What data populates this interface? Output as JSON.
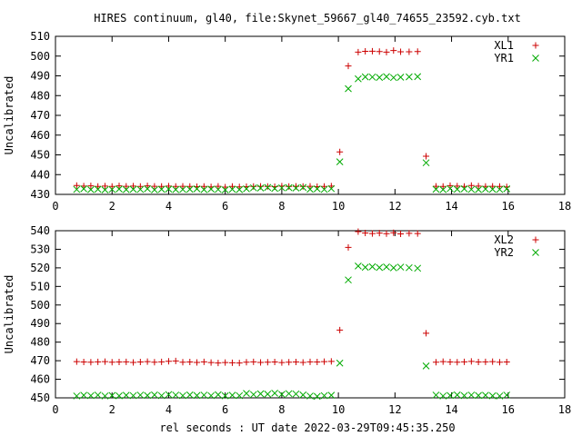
{
  "title": "HIRES continuum, gl40, file:Skynet_59667_gl40_74655_23592.cyb.txt",
  "xlabel": "rel seconds : UT date 2022-03-29T09:45:35.250",
  "chart_data": [
    {
      "type": "scatter",
      "ylabel": "Uncalibrated",
      "xlim": [
        0,
        18
      ],
      "ylim": [
        430,
        510
      ],
      "xticks": [
        0,
        2,
        4,
        6,
        8,
        10,
        12,
        14,
        16,
        18
      ],
      "yticks": [
        430,
        440,
        450,
        460,
        470,
        480,
        490,
        500,
        510
      ],
      "legend": "top-right",
      "series": [
        {
          "name": "XL1",
          "marker": "+",
          "color": "#cc0000",
          "x": [
            0.75,
            1.0,
            1.25,
            1.5,
            1.75,
            2.0,
            2.25,
            2.5,
            2.75,
            3.0,
            3.25,
            3.5,
            3.75,
            4.0,
            4.25,
            4.5,
            4.75,
            5.0,
            5.25,
            5.5,
            5.75,
            6.0,
            6.25,
            6.5,
            6.75,
            7.0,
            7.25,
            7.5,
            7.75,
            8.0,
            8.25,
            8.5,
            8.75,
            9.0,
            9.25,
            9.5,
            9.75,
            10.05,
            10.35,
            10.7,
            10.95,
            11.2,
            11.45,
            11.7,
            11.95,
            12.2,
            12.5,
            12.8,
            13.1,
            13.45,
            13.7,
            13.95,
            14.2,
            14.45,
            14.7,
            14.95,
            15.2,
            15.45,
            15.7,
            15.95
          ],
          "y": [
            434.5,
            434.2,
            434.3,
            434.0,
            434.2,
            434.0,
            434.3,
            434.1,
            434.2,
            434.0,
            434.3,
            434.1,
            434.0,
            434.2,
            434.0,
            434.1,
            434.0,
            433.9,
            434.0,
            433.8,
            434.1,
            433.7,
            434.0,
            433.8,
            433.9,
            434.0,
            434.1,
            434.0,
            433.9,
            434.2,
            434.0,
            434.1,
            434.0,
            434.1,
            433.9,
            434.0,
            434.2,
            451.5,
            495.0,
            502.0,
            502.4,
            502.5,
            502.3,
            502.0,
            502.8,
            502.2,
            502.2,
            502.3,
            449.3,
            434.1,
            434.0,
            434.4,
            434.2,
            434.0,
            434.5,
            434.2,
            434.0,
            434.1,
            434.0,
            433.8
          ]
        },
        {
          "name": "YR1",
          "marker": "x",
          "color": "#00aa00",
          "x": [
            0.75,
            1.0,
            1.25,
            1.5,
            1.75,
            2.0,
            2.25,
            2.5,
            2.75,
            3.0,
            3.25,
            3.5,
            3.75,
            4.0,
            4.25,
            4.5,
            4.75,
            5.0,
            5.25,
            5.5,
            5.75,
            6.0,
            6.25,
            6.5,
            6.75,
            7.0,
            7.25,
            7.5,
            7.75,
            8.0,
            8.25,
            8.5,
            8.75,
            9.0,
            9.25,
            9.5,
            9.75,
            10.05,
            10.35,
            10.7,
            10.95,
            11.2,
            11.45,
            11.7,
            11.95,
            12.2,
            12.5,
            12.8,
            13.1,
            13.45,
            13.7,
            13.95,
            14.2,
            14.45,
            14.7,
            14.95,
            15.2,
            15.45,
            15.7,
            15.95
          ],
          "y": [
            432.5,
            432.8,
            432.4,
            432.6,
            432.3,
            432.5,
            432.7,
            432.4,
            432.6,
            432.5,
            432.8,
            432.3,
            432.6,
            432.7,
            432.4,
            432.5,
            432.6,
            432.8,
            432.4,
            432.7,
            432.5,
            432.3,
            432.6,
            432.4,
            432.8,
            433.3,
            433.2,
            433.5,
            433.0,
            433.3,
            433.4,
            433.2,
            433.5,
            432.6,
            432.8,
            432.5,
            432.9,
            446.5,
            483.5,
            488.5,
            489.5,
            489.4,
            489.2,
            489.6,
            489.1,
            489.3,
            489.5,
            489.6,
            446.0,
            432.6,
            432.4,
            432.9,
            432.6,
            432.8,
            432.5,
            432.4,
            432.7,
            432.6,
            432.5,
            432.8
          ]
        }
      ]
    },
    {
      "type": "scatter",
      "ylabel": "Uncalibrated",
      "xlim": [
        0,
        18
      ],
      "ylim": [
        450,
        540
      ],
      "xticks": [
        0,
        2,
        4,
        6,
        8,
        10,
        12,
        14,
        16,
        18
      ],
      "yticks": [
        450,
        460,
        470,
        480,
        490,
        500,
        510,
        520,
        530,
        540
      ],
      "legend": "top-right",
      "series": [
        {
          "name": "XL2",
          "marker": "+",
          "color": "#cc0000",
          "x": [
            0.75,
            1.0,
            1.25,
            1.5,
            1.75,
            2.0,
            2.25,
            2.5,
            2.75,
            3.0,
            3.25,
            3.5,
            3.75,
            4.0,
            4.25,
            4.5,
            4.75,
            5.0,
            5.25,
            5.5,
            5.75,
            6.0,
            6.25,
            6.5,
            6.75,
            7.0,
            7.25,
            7.5,
            7.75,
            8.0,
            8.25,
            8.5,
            8.75,
            9.0,
            9.25,
            9.5,
            9.75,
            10.05,
            10.35,
            10.7,
            10.95,
            11.2,
            11.45,
            11.7,
            11.95,
            12.2,
            12.5,
            12.8,
            13.1,
            13.45,
            13.7,
            13.95,
            14.2,
            14.45,
            14.7,
            14.95,
            15.2,
            15.45,
            15.7,
            15.95
          ],
          "y": [
            469.5,
            469.3,
            469.2,
            469.4,
            469.5,
            469.2,
            469.3,
            469.4,
            469.1,
            469.3,
            469.5,
            469.2,
            469.4,
            469.7,
            469.9,
            469.2,
            469.3,
            469.1,
            469.4,
            469.0,
            468.8,
            469.0,
            468.9,
            468.8,
            469.2,
            469.4,
            469.1,
            469.2,
            469.3,
            469.0,
            469.2,
            469.3,
            469.1,
            469.4,
            469.3,
            469.5,
            469.6,
            486.5,
            531.0,
            539.5,
            538.8,
            538.5,
            538.7,
            538.4,
            538.9,
            538.3,
            538.6,
            538.5,
            484.8,
            469.2,
            469.5,
            469.3,
            469.2,
            469.4,
            469.6,
            469.3,
            469.4,
            469.5,
            469.2,
            469.3
          ]
        },
        {
          "name": "YR2",
          "marker": "x",
          "color": "#00aa00",
          "x": [
            0.75,
            1.0,
            1.25,
            1.5,
            1.75,
            2.0,
            2.25,
            2.5,
            2.75,
            3.0,
            3.25,
            3.5,
            3.75,
            4.0,
            4.25,
            4.5,
            4.75,
            5.0,
            5.25,
            5.5,
            5.75,
            6.0,
            6.25,
            6.5,
            6.75,
            7.0,
            7.25,
            7.5,
            7.75,
            8.0,
            8.25,
            8.5,
            8.75,
            9.0,
            9.25,
            9.5,
            9.75,
            10.05,
            10.35,
            10.7,
            10.95,
            11.2,
            11.45,
            11.7,
            11.95,
            12.2,
            12.5,
            12.8,
            13.1,
            13.45,
            13.7,
            13.95,
            14.2,
            14.45,
            14.7,
            14.95,
            15.2,
            15.45,
            15.7,
            15.95
          ],
          "y": [
            451.0,
            451.4,
            451.2,
            451.5,
            451.0,
            451.3,
            451.1,
            451.4,
            451.2,
            451.5,
            451.3,
            451.6,
            451.2,
            451.8,
            451.5,
            451.2,
            451.6,
            451.3,
            451.5,
            451.2,
            451.7,
            451.1,
            451.4,
            451.2,
            452.4,
            451.8,
            452.2,
            452.0,
            452.5,
            451.9,
            452.3,
            452.1,
            451.6,
            451.0,
            450.8,
            451.2,
            451.4,
            468.7,
            513.5,
            521.0,
            520.3,
            520.6,
            520.2,
            520.5,
            520.0,
            520.4,
            520.1,
            519.8,
            467.2,
            451.5,
            451.0,
            451.3,
            451.6,
            451.2,
            451.5,
            451.3,
            451.4,
            451.1,
            451.0,
            451.5
          ]
        }
      ]
    }
  ]
}
